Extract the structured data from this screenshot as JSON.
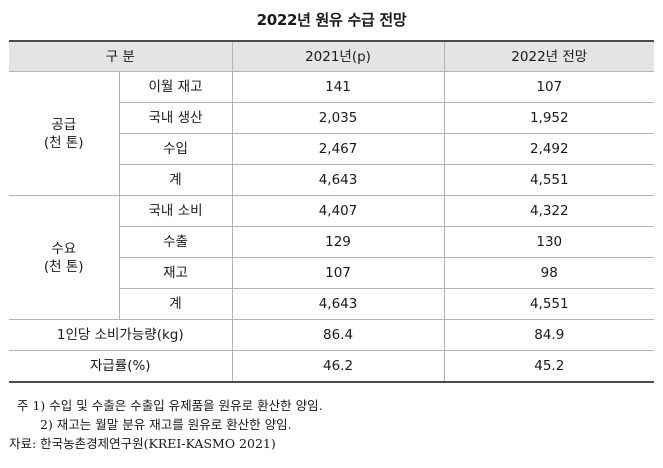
{
  "title": "2022년 원유 수급 전망",
  "header": {
    "category": "구 분",
    "col_2021": "2021년(p)",
    "col_2022": "2022년 전망"
  },
  "supply": {
    "label_line1": "공급",
    "label_line2": "(천 톤)",
    "rows": [
      {
        "label": "이월 재고",
        "v2021": "141",
        "v2022": "107"
      },
      {
        "label": "국내 생산",
        "v2021": "2,035",
        "v2022": "1,952"
      },
      {
        "label": "수입",
        "v2021": "2,467",
        "v2022": "2,492"
      },
      {
        "label": "계",
        "v2021": "4,643",
        "v2022": "4,551"
      }
    ]
  },
  "demand": {
    "label_line1": "수요",
    "label_line2": "(천 톤)",
    "rows": [
      {
        "label": "국내 소비",
        "v2021": "4,407",
        "v2022": "4,322"
      },
      {
        "label": "수출",
        "v2021": "129",
        "v2022": "130"
      },
      {
        "label": "재고",
        "v2021": "107",
        "v2022": "98"
      },
      {
        "label": "계",
        "v2021": "4,643",
        "v2022": "4,551"
      }
    ]
  },
  "per_capita": {
    "label": "1인당 소비가능량(kg)",
    "v2021": "86.4",
    "v2022": "84.9"
  },
  "self_sufficiency": {
    "label": "자급률(%)",
    "v2021": "46.2",
    "v2022": "45.2"
  },
  "notes": {
    "note1": "주 1) 수입 및 수출은 수출입 유제품을 원유로 환산한 양임.",
    "note2": "2) 재고는 월말 분유 재고를 원유로 환산한 양임.",
    "source": "자료: 한국농촌경제연구원(KREI-KASMO 2021)"
  }
}
